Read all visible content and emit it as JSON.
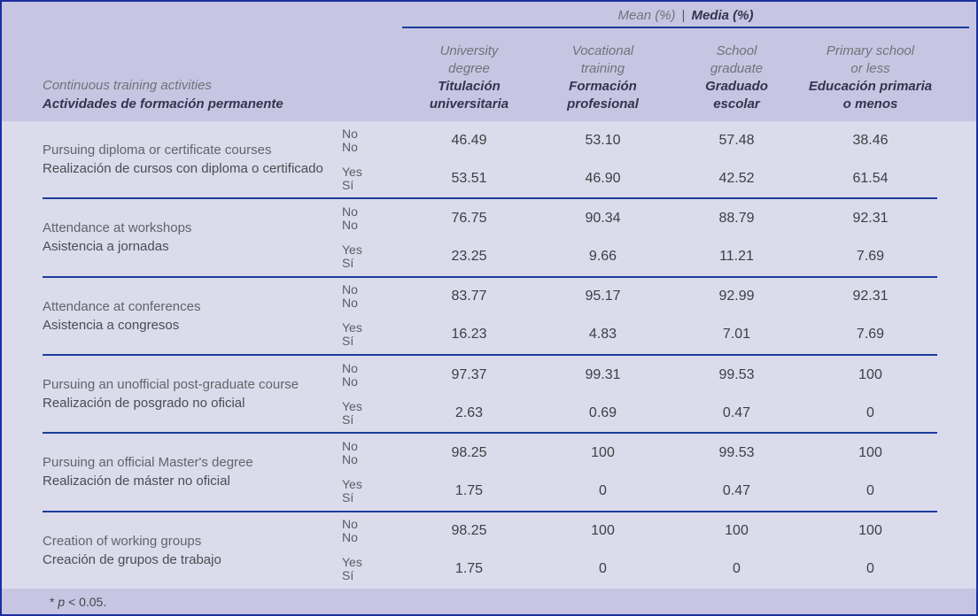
{
  "table": {
    "mean_header": {
      "en": "Mean (%)",
      "sep": "|",
      "es": "Media (%)"
    },
    "row_header": {
      "en": "Continuous training activities",
      "es": "Actividades de formación permanente"
    },
    "columns": [
      {
        "en": "University\ndegree",
        "es": "Titulación\nuniversitaria"
      },
      {
        "en": "Vocational\ntraining",
        "es": "Formación\nprofesional"
      },
      {
        "en": "School\ngraduate",
        "es": "Graduado\nescolar"
      },
      {
        "en": "Primary school\nor less",
        "es": "Educación primaria\no menos"
      }
    ],
    "yes_no": {
      "no_label": "No\nNo",
      "yes_label": "Yes\nSí"
    },
    "rows": [
      {
        "en": "Pursuing diploma or certificate courses",
        "es": "Realización de cursos con diploma o certificado",
        "no": [
          "46.49",
          "53.10",
          "57.48",
          "38.46"
        ],
        "yes": [
          "53.51",
          "46.90",
          "42.52",
          "61.54"
        ]
      },
      {
        "en": "Attendance at workshops",
        "es": "Asistencia a jornadas",
        "no": [
          "76.75",
          "90.34",
          "88.79",
          "92.31"
        ],
        "yes": [
          "23.25",
          "9.66",
          "11.21",
          "7.69"
        ]
      },
      {
        "en": "Attendance at conferences",
        "es": "Asistencia a congresos",
        "no": [
          "83.77",
          "95.17",
          "92.99",
          "92.31"
        ],
        "yes": [
          "16.23",
          "4.83",
          "7.01",
          "7.69"
        ]
      },
      {
        "en": "Pursuing an unofficial post-graduate course",
        "es": "Realización de posgrado no oficial",
        "no": [
          "97.37",
          "99.31",
          "99.53",
          "100"
        ],
        "yes": [
          "2.63",
          "0.69",
          "0.47",
          "0"
        ]
      },
      {
        "en": "Pursuing an official Master's degree",
        "es": "Realización de máster no oficial",
        "no": [
          "98.25",
          "100",
          "99.53",
          "100"
        ],
        "yes": [
          "1.75",
          "0",
          "0.47",
          "0"
        ]
      },
      {
        "en": "Creation of working groups",
        "es": "Creación de grupos de trabajo",
        "no": [
          "98.25",
          "100",
          "100",
          "100"
        ],
        "yes": [
          "1.75",
          "0",
          "0",
          "0"
        ]
      }
    ],
    "footnote": {
      "star": "* ",
      "p": "p",
      "rest": " < 0.05."
    }
  }
}
